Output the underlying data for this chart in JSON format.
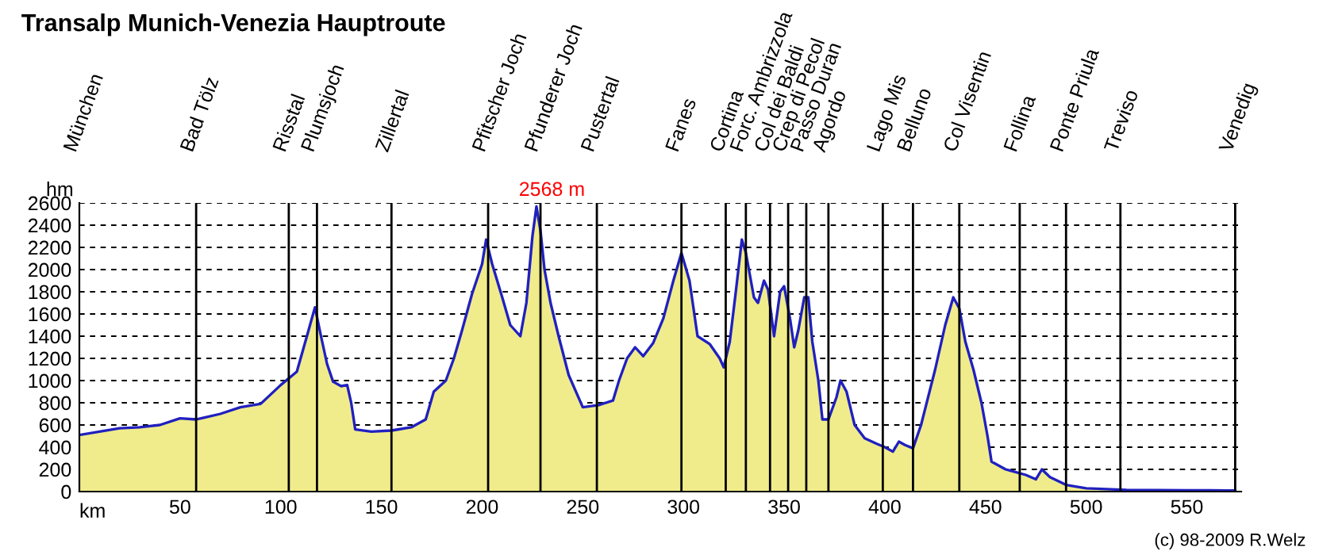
{
  "chart_data": {
    "type": "area",
    "title": "Transalp Munich-Venezia Hauptroute",
    "xlabel": "km",
    "ylabel": "hm",
    "x": [
      0,
      10,
      20,
      30,
      40,
      50,
      58,
      70,
      80,
      90,
      100,
      108,
      113,
      117,
      120,
      123,
      126,
      130,
      133,
      135,
      137,
      145,
      155,
      165,
      172,
      176,
      182,
      186,
      190,
      195,
      200,
      202,
      205,
      210,
      214,
      219,
      222,
      225,
      227,
      229,
      231,
      234,
      238,
      243,
      250,
      258,
      265,
      268,
      272,
      276,
      280,
      285,
      290,
      295,
      299,
      303,
      307,
      313,
      318,
      320,
      323,
      326,
      329,
      331,
      333,
      335,
      337,
      340,
      342,
      345,
      348,
      350,
      353,
      355,
      357,
      360,
      362,
      364,
      367,
      369,
      372,
      376,
      378,
      381,
      385,
      390,
      396,
      400,
      404,
      407,
      410,
      414,
      418,
      425,
      430,
      434,
      437,
      440,
      444,
      448,
      451,
      453,
      460,
      470,
      475,
      478,
      482,
      490,
      500,
      520,
      550,
      570,
      574
    ],
    "series": [
      {
        "color": "#f0ec8c",
        "values": [
          510,
          540,
          570,
          580,
          600,
          660,
          650,
          700,
          760,
          790,
          960,
          1080,
          1400,
          1660,
          1400,
          1150,
          990,
          950,
          960,
          800,
          560,
          540,
          550,
          580,
          650,
          900,
          1000,
          1200,
          1450,
          1780,
          2050,
          2270,
          2050,
          1750,
          1500,
          1400,
          1700,
          2300,
          2568,
          2350,
          2000,
          1700,
          1400,
          1050,
          760,
          780,
          820,
          1000,
          1200,
          1300,
          1220,
          1340,
          1560,
          1900,
          2150,
          1900,
          1400,
          1330,
          1200,
          1120,
          1350,
          1800,
          2270,
          2150,
          1950,
          1750,
          1700,
          1900,
          1820,
          1400,
          1800,
          1850,
          1550,
          1300,
          1450,
          1750,
          1750,
          1350,
          1000,
          650,
          650,
          850,
          1000,
          900,
          600,
          480,
          430,
          400,
          360,
          450,
          420,
          390,
          600,
          1100,
          1500,
          1750,
          1650,
          1350,
          1100,
          800,
          500,
          270,
          200,
          150,
          110,
          200,
          130,
          60,
          30,
          15,
          12,
          10,
          10
        ]
      }
    ],
    "xlim": [
      0,
      577
    ],
    "xticks": [
      {
        "value": 0,
        "label": null
      },
      50,
      100,
      150,
      200,
      250,
      300,
      350,
      400,
      450,
      500,
      550
    ],
    "ylim": [
      0,
      2600
    ],
    "yticks": [
      0,
      200,
      400,
      600,
      800,
      1000,
      1200,
      1400,
      1600,
      1800,
      2000,
      2200,
      2400,
      2600
    ],
    "grid": "y",
    "ref_lines": [
      {
        "axis": "x",
        "value": 58,
        "label": "Bad Tölz"
      },
      {
        "axis": "x",
        "value": 104,
        "label": "Risstal"
      },
      {
        "axis": "x",
        "value": 118,
        "label": "Plumsjoch"
      },
      {
        "axis": "x",
        "value": 155,
        "label": "Zillertal"
      },
      {
        "axis": "x",
        "value": 203,
        "label": "Pfitscher Joch"
      },
      {
        "axis": "x",
        "value": 229,
        "label": "Pfunderer Joch"
      },
      {
        "axis": "x",
        "value": 257,
        "label": "Pustertal"
      },
      {
        "axis": "x",
        "value": 299,
        "label": "Fanes"
      },
      {
        "axis": "x",
        "value": 321,
        "label": "Cortina"
      },
      {
        "axis": "x",
        "value": 331,
        "label": "Forc. Ambrizzola"
      },
      {
        "axis": "x",
        "value": 343,
        "label": "Col dei Baldi"
      },
      {
        "axis": "x",
        "value": 352,
        "label": "Crep di Pecol"
      },
      {
        "axis": "x",
        "value": 361,
        "label": "Passo Duran"
      },
      {
        "axis": "x",
        "value": 372,
        "label": "Agordo"
      },
      {
        "axis": "x",
        "value": 399,
        "label": "Lago Mis"
      },
      {
        "axis": "x",
        "value": 414,
        "label": "Belluno"
      },
      {
        "axis": "x",
        "value": 437,
        "label": "Col Visentin"
      },
      {
        "axis": "x",
        "value": 467,
        "label": "Follina"
      },
      {
        "axis": "x",
        "value": 490,
        "label": "Ponte Priula"
      },
      {
        "axis": "x",
        "value": 517,
        "label": "Treviso"
      },
      {
        "axis": "x",
        "value": 574,
        "label": "Venedig"
      }
    ],
    "annotations": [
      {
        "text": "2568 m",
        "x": 227,
        "y": 2568
      },
      "München",
      "(c) 98-2009 R.Welz"
    ]
  }
}
